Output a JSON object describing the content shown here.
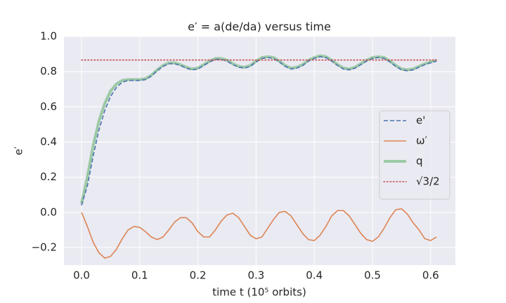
{
  "chart_data": {
    "type": "line",
    "title": "e′ = a(de/da) versus time",
    "x_label": "time t    (10⁵ orbits)",
    "y_label": "e′",
    "xlim": [
      -0.0302,
      0.6425
    ],
    "ylim": [
      -0.3,
      1.0
    ],
    "xticks": [
      {
        "value": 0,
        "label": "0.0"
      },
      0.1,
      0.2,
      0.3,
      0.4,
      0.5,
      0.6
    ],
    "yticks": [
      {
        "value": -0.2,
        "label": "−0.2"
      },
      {
        "value": 0,
        "label": "0.0"
      },
      0.2,
      0.4,
      0.6,
      0.8,
      {
        "value": 1,
        "label": "1.0"
      }
    ],
    "grid": true,
    "legend": "right",
    "x": [
      0,
      0.01,
      0.02,
      0.03,
      0.04,
      0.05,
      0.06,
      0.07,
      0.08,
      0.09,
      0.1,
      0.11,
      0.12,
      0.13,
      0.14,
      0.15,
      0.16,
      0.17,
      0.18,
      0.19,
      0.2,
      0.21,
      0.22,
      0.23,
      0.24,
      0.25,
      0.26,
      0.27,
      0.28,
      0.29,
      0.3,
      0.31,
      0.32,
      0.33,
      0.34,
      0.35,
      0.36,
      0.37,
      0.38,
      0.39,
      0.4,
      0.41,
      0.42,
      0.43,
      0.44,
      0.45,
      0.46,
      0.47,
      0.48,
      0.49,
      0.5,
      0.51,
      0.52,
      0.53,
      0.54,
      0.55,
      0.56,
      0.57,
      0.58,
      0.59,
      0.6,
      0.61
    ],
    "series": [
      {
        "name": "e'",
        "color": "#4c72b0",
        "dash": "dashed",
        "width": 1.6,
        "values": [
          0.04,
          0.15,
          0.32,
          0.47,
          0.58,
          0.66,
          0.71,
          0.74,
          0.75,
          0.75,
          0.75,
          0.755,
          0.775,
          0.805,
          0.83,
          0.845,
          0.845,
          0.835,
          0.82,
          0.81,
          0.815,
          0.835,
          0.855,
          0.87,
          0.87,
          0.86,
          0.84,
          0.825,
          0.82,
          0.83,
          0.855,
          0.875,
          0.88,
          0.875,
          0.855,
          0.83,
          0.815,
          0.82,
          0.835,
          0.86,
          0.875,
          0.885,
          0.88,
          0.86,
          0.835,
          0.815,
          0.81,
          0.82,
          0.84,
          0.86,
          0.875,
          0.88,
          0.875,
          0.855,
          0.83,
          0.81,
          0.805,
          0.81,
          0.825,
          0.84,
          0.85,
          0.86
        ]
      },
      {
        "name": "ω′",
        "color": "#dd8452",
        "dash": "solid",
        "width": 1.6,
        "values": [
          0,
          -0.08,
          -0.17,
          -0.23,
          -0.26,
          -0.25,
          -0.21,
          -0.15,
          -0.1,
          -0.08,
          -0.085,
          -0.11,
          -0.14,
          -0.155,
          -0.14,
          -0.1,
          -0.055,
          -0.03,
          -0.03,
          -0.06,
          -0.11,
          -0.14,
          -0.14,
          -0.1,
          -0.05,
          -0.015,
          -0.005,
          -0.03,
          -0.08,
          -0.13,
          -0.15,
          -0.14,
          -0.09,
          -0.04,
          0,
          0.005,
          -0.02,
          -0.07,
          -0.12,
          -0.155,
          -0.16,
          -0.13,
          -0.08,
          -0.02,
          0.01,
          0.01,
          -0.02,
          -0.07,
          -0.12,
          -0.155,
          -0.165,
          -0.14,
          -0.09,
          -0.03,
          0.015,
          0.02,
          -0.01,
          -0.06,
          -0.1,
          -0.15,
          -0.16,
          -0.14
        ]
      },
      {
        "name": "q",
        "color": "#9cc9a6",
        "dash": "solid",
        "width": 4,
        "values": [
          0.05,
          0.2,
          0.38,
          0.52,
          0.62,
          0.69,
          0.73,
          0.75,
          0.755,
          0.755,
          0.755,
          0.76,
          0.78,
          0.81,
          0.835,
          0.85,
          0.85,
          0.84,
          0.825,
          0.815,
          0.82,
          0.84,
          0.86,
          0.875,
          0.875,
          0.865,
          0.845,
          0.83,
          0.825,
          0.835,
          0.86,
          0.88,
          0.885,
          0.88,
          0.86,
          0.835,
          0.82,
          0.825,
          0.84,
          0.865,
          0.88,
          0.89,
          0.885,
          0.865,
          0.84,
          0.82,
          0.815,
          0.825,
          0.845,
          0.865,
          0.88,
          0.885,
          0.88,
          0.86,
          0.835,
          0.815,
          0.81,
          0.815,
          0.83,
          0.845,
          0.855,
          0.865
        ]
      },
      {
        "name": "√3/2",
        "color": "#c44e52",
        "dash": "dotted",
        "width": 1.6,
        "x": [
          0,
          0.61
        ],
        "values": [
          0.866,
          0.866
        ]
      }
    ]
  }
}
